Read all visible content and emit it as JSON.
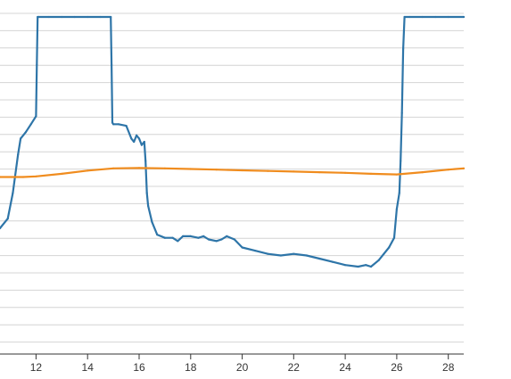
{
  "chart_data": {
    "type": "line",
    "xlim": [
      10.6,
      28.6
    ],
    "ylim": [
      0,
      1
    ],
    "grid": true,
    "x_ticks": [
      12,
      14,
      16,
      18,
      20,
      22,
      24,
      26,
      28
    ],
    "x_tick_labels": [
      "12",
      "14",
      "16",
      "18",
      "20",
      "22",
      "24",
      "26",
      "28"
    ],
    "series": [
      {
        "color": "#2e75a8",
        "x": [
          10.6,
          10.9,
          11.1,
          11.3,
          11.4,
          11.6,
          11.8,
          12.0,
          12.03,
          12.06,
          12.1,
          12.5,
          13.0,
          13.5,
          14.0,
          14.5,
          14.9,
          14.93,
          14.96,
          15.0,
          15.2,
          15.5,
          15.7,
          15.8,
          15.9,
          16.0,
          16.1,
          16.2,
          16.25,
          16.3,
          16.35,
          16.5,
          16.7,
          17.0,
          17.3,
          17.5,
          17.7,
          18.0,
          18.3,
          18.5,
          18.7,
          19.0,
          19.2,
          19.4,
          19.7,
          20.0,
          20.5,
          21.0,
          21.5,
          22.0,
          22.5,
          23.0,
          23.5,
          24.0,
          24.5,
          24.8,
          25.0,
          25.3,
          25.5,
          25.7,
          25.9,
          26.0,
          26.1,
          26.15,
          26.2,
          26.25,
          26.3,
          26.5,
          27.0,
          27.5,
          28.0,
          28.6
        ],
        "y": [
          0.34,
          0.37,
          0.45,
          0.57,
          0.62,
          0.64,
          0.665,
          0.69,
          0.85,
          1.0,
          1.0,
          1.0,
          1.0,
          1.0,
          1.0,
          1.0,
          1.0,
          0.85,
          0.67,
          0.665,
          0.665,
          0.66,
          0.62,
          0.61,
          0.63,
          0.62,
          0.6,
          0.61,
          0.55,
          0.45,
          0.41,
          0.36,
          0.32,
          0.31,
          0.31,
          0.3,
          0.315,
          0.315,
          0.31,
          0.315,
          0.305,
          0.3,
          0.305,
          0.315,
          0.305,
          0.28,
          0.27,
          0.26,
          0.255,
          0.26,
          0.255,
          0.245,
          0.235,
          0.225,
          0.22,
          0.225,
          0.22,
          0.24,
          0.26,
          0.28,
          0.31,
          0.4,
          0.45,
          0.55,
          0.7,
          0.9,
          1.0,
          1.0,
          1.0,
          1.0,
          1.0,
          1.0
        ]
      },
      {
        "color": "#f08c1e",
        "x": [
          10.6,
          11.5,
          12.0,
          13.0,
          14.0,
          15.0,
          16.0,
          17.0,
          18.0,
          19.0,
          20.0,
          21.0,
          22.0,
          23.0,
          24.0,
          25.0,
          26.0,
          27.0,
          28.0,
          28.6
        ],
        "y": [
          0.5,
          0.5,
          0.502,
          0.51,
          0.52,
          0.527,
          0.528,
          0.527,
          0.525,
          0.523,
          0.521,
          0.519,
          0.517,
          0.515,
          0.513,
          0.51,
          0.508,
          0.515,
          0.523,
          0.527
        ]
      }
    ]
  }
}
